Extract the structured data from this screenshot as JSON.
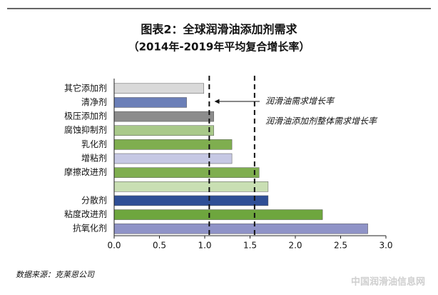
{
  "chart_data": {
    "type": "hbar",
    "title": "图表2：全球润滑油添加剂需求",
    "subtitle": "（2014年-2019年平均复合增长率）",
    "categories": [
      "其它添加剂",
      "清净剂",
      "极压添加剂",
      "腐蚀抑制剂",
      "乳化剂",
      "增粘剂",
      "摩擦改进剂",
      null,
      "分散剂",
      "粘度改进剂",
      "抗氧化剂"
    ],
    "values": [
      0.99,
      0.8,
      1.1,
      1.1,
      1.3,
      1.3,
      1.6,
      1.7,
      1.7,
      2.3,
      2.8
    ],
    "colors": [
      "#d9d9d9",
      "#6b7fb8",
      "#8c8c8c",
      "#a9c98a",
      "#7fae4f",
      "#c6c8e4",
      "#7fae4f",
      "#c9dfb3",
      "#2f4f96",
      "#6ea63e",
      "#8f93c7"
    ],
    "xlim": [
      0,
      3
    ],
    "xticks": [
      {
        "value": 0,
        "label": "0.0"
      },
      0.5,
      {
        "value": 1,
        "label": "1.0"
      },
      1.5,
      {
        "value": 2,
        "label": "2.0"
      },
      2.5,
      {
        "value": 3,
        "label": "3.0"
      }
    ],
    "reference_lines": [
      {
        "value": 1.05,
        "label": "润滑油需求增长率"
      },
      {
        "value": 1.55,
        "label": "润滑油添加剂整体需求增长率"
      }
    ],
    "source": "数据来源：克莱恩公司",
    "watermark": "中国润滑油信息网"
  }
}
